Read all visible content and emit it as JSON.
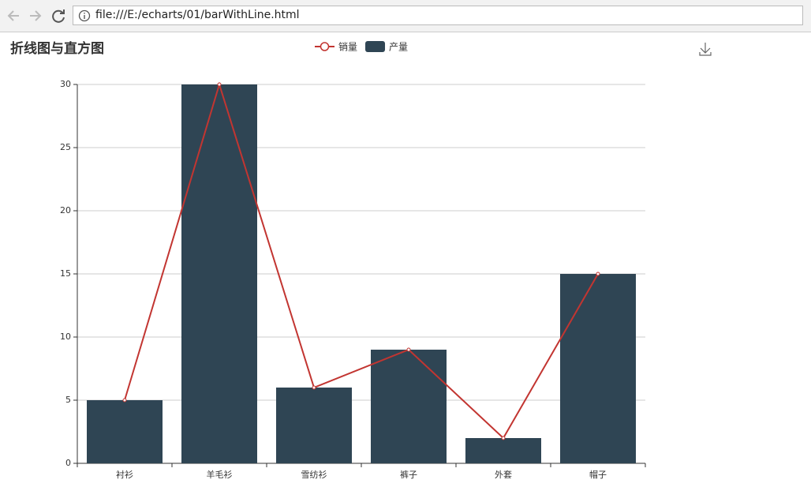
{
  "browser": {
    "url": "file:///E:/echarts/01/barWithLine.html"
  },
  "chart_data": {
    "type": "bar",
    "title": "折线图与直方图",
    "categories": [
      "衬衫",
      "羊毛衫",
      "雪纺衫",
      "裤子",
      "外套",
      "帽子"
    ],
    "series": [
      {
        "name": "销量",
        "type": "line",
        "color": "#c23531",
        "values": [
          5,
          30,
          6,
          9,
          2,
          15
        ]
      },
      {
        "name": "产量",
        "type": "bar",
        "color": "#2f4554",
        "values": [
          5,
          30,
          6,
          9,
          2,
          15
        ]
      }
    ],
    "ylim": [
      0,
      30
    ],
    "yticks": [
      0,
      5,
      10,
      15,
      20,
      25,
      30
    ],
    "grid": true
  }
}
